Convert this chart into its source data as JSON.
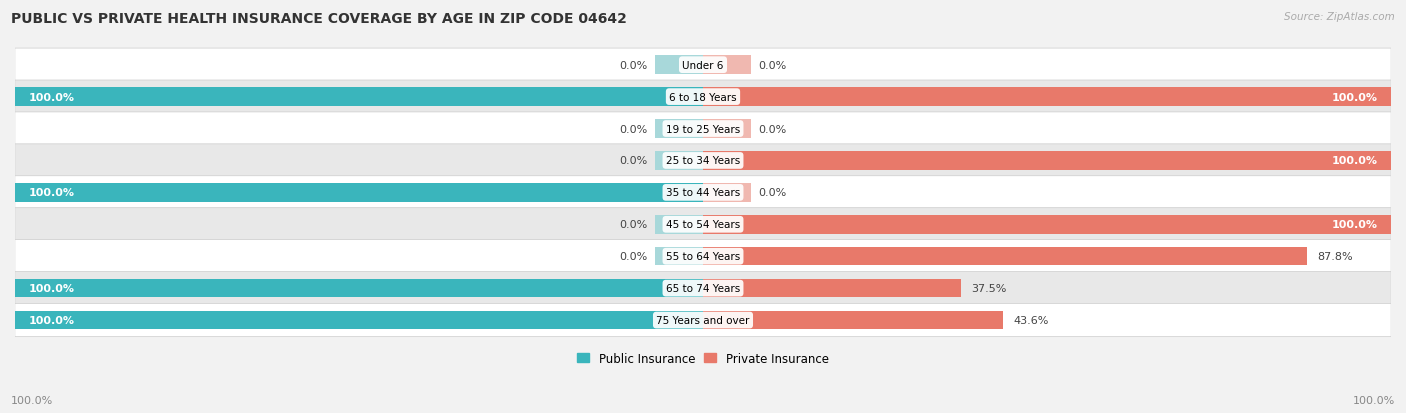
{
  "title": "PUBLIC VS PRIVATE HEALTH INSURANCE COVERAGE BY AGE IN ZIP CODE 04642",
  "source": "Source: ZipAtlas.com",
  "categories": [
    "Under 6",
    "6 to 18 Years",
    "19 to 25 Years",
    "25 to 34 Years",
    "35 to 44 Years",
    "45 to 54 Years",
    "55 to 64 Years",
    "65 to 74 Years",
    "75 Years and over"
  ],
  "public_values": [
    0.0,
    100.0,
    0.0,
    0.0,
    100.0,
    0.0,
    0.0,
    100.0,
    100.0
  ],
  "private_values": [
    0.0,
    100.0,
    0.0,
    100.0,
    0.0,
    100.0,
    87.8,
    37.5,
    43.6
  ],
  "public_color": "#3ab5bc",
  "private_color": "#e8796a",
  "public_color_light": "#a8d8da",
  "private_color_light": "#f0b8b0",
  "bg_color": "#f2f2f2",
  "row_color_light": "#ffffff",
  "row_color_dark": "#e8e8e8",
  "title_fontsize": 10,
  "source_fontsize": 7.5,
  "label_fontsize": 8,
  "cat_fontsize": 7.5,
  "bar_height": 0.58,
  "stub_size": 7.0,
  "x_axis_left_label": "100.0%",
  "x_axis_right_label": "100.0%"
}
